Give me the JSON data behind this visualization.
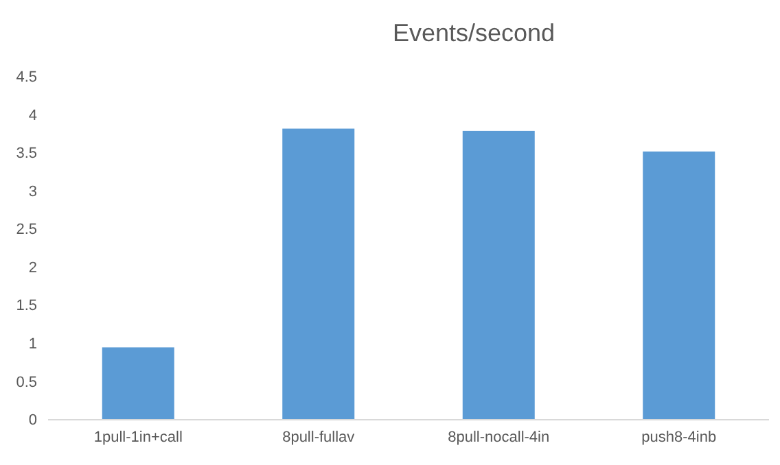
{
  "chart_data": {
    "type": "bar",
    "title": "Events/second",
    "categories": [
      "1pull-1in+call",
      "8pull-fullav",
      "8pull-nocall-4in",
      "push8-4inb"
    ],
    "values": [
      0.95,
      3.82,
      3.79,
      3.52
    ],
    "color": "#5b9bd5",
    "ylim": [
      0,
      4.5
    ],
    "yticks": [
      0,
      0.5,
      1,
      1.5,
      2,
      2.5,
      3,
      3.5,
      4,
      4.5
    ],
    "grid": false
  }
}
